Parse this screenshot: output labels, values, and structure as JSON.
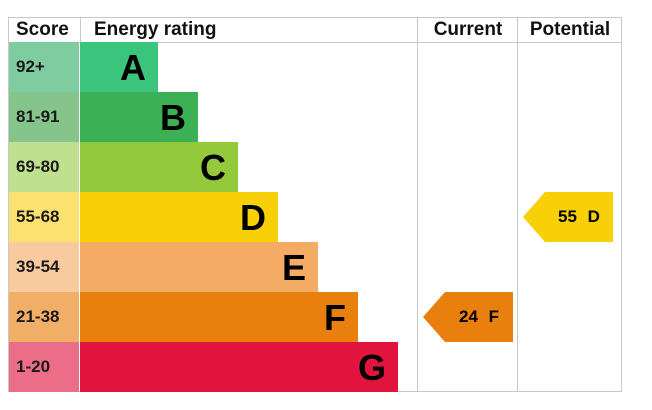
{
  "chart_data": {
    "type": "table",
    "headers": {
      "score": "Score",
      "rating": "Energy rating",
      "current": "Current",
      "potential": "Potential"
    },
    "bands": [
      {
        "score": "92+",
        "letter": "A",
        "color": "#3bc47c",
        "score_bg": "#7fcca0"
      },
      {
        "score": "81-91",
        "letter": "B",
        "color": "#3cb054",
        "score_bg": "#85c58c"
      },
      {
        "score": "69-80",
        "letter": "C",
        "color": "#93c93b",
        "score_bg": "#bfe08e"
      },
      {
        "score": "55-68",
        "letter": "D",
        "color": "#f8d007",
        "score_bg": "#fbe16e"
      },
      {
        "score": "39-54",
        "letter": "E",
        "color": "#f4ab63",
        "score_bg": "#f8ca9d"
      },
      {
        "score": "21-38",
        "letter": "F",
        "color": "#e9800e",
        "score_bg": "#f1ae66"
      },
      {
        "score": "1-20",
        "letter": "G",
        "color": "#e0143c",
        "score_bg": "#ec6d88"
      }
    ],
    "current": {
      "value": 24,
      "letter": "F",
      "label": "24 F",
      "color": "#e9800e"
    },
    "potential": {
      "value": 55,
      "letter": "D",
      "label": "55 D",
      "color": "#f8d007"
    }
  }
}
